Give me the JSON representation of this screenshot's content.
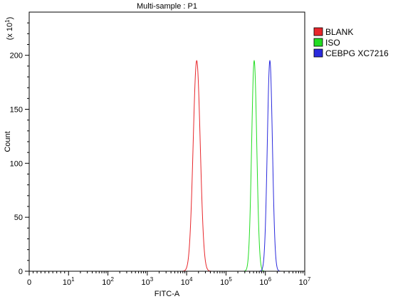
{
  "chart_data": {
    "type": "area",
    "title": "Multi-sample : P1",
    "xlabel": "FITC-A",
    "ylabel": "Count",
    "y_multiplier_label": "(x 10",
    "y_multiplier_exponent": "1",
    "y_multiplier_close": ")",
    "x_scale": "log",
    "xlim": [
      0,
      10000000
    ],
    "ylim": [
      0,
      240
    ],
    "grid": false,
    "legend_position": "top-right",
    "y_ticks": [
      {
        "value": 0,
        "label": "0"
      },
      {
        "value": 50,
        "label": "50"
      },
      {
        "value": 100,
        "label": "100"
      },
      {
        "value": 150,
        "label": "150"
      },
      {
        "value": 200,
        "label": "200"
      }
    ],
    "x_ticks": [
      {
        "value": 0,
        "base": "0",
        "exp": ""
      },
      {
        "value": 10,
        "base": "10",
        "exp": "1"
      },
      {
        "value": 100,
        "base": "10",
        "exp": "2"
      },
      {
        "value": 1000,
        "base": "10",
        "exp": "3"
      },
      {
        "value": 10000,
        "base": "10",
        "exp": "4"
      },
      {
        "value": 100000,
        "base": "10",
        "exp": "5"
      },
      {
        "value": 1000000,
        "base": "10",
        "exp": "6"
      },
      {
        "value": 10000000,
        "base": "10",
        "exp": "7"
      }
    ],
    "series": [
      {
        "name": "BLANK",
        "color": "#e8262b",
        "peak_x": 18000,
        "peak_y": 195,
        "spread_decades": 0.09
      },
      {
        "name": "ISO",
        "color": "#22dd22",
        "peak_x": 520000,
        "peak_y": 195,
        "spread_decades": 0.065
      },
      {
        "name": "CEBPG XC7216",
        "color": "#2a2add",
        "peak_x": 1300000,
        "peak_y": 195,
        "spread_decades": 0.065
      }
    ]
  }
}
